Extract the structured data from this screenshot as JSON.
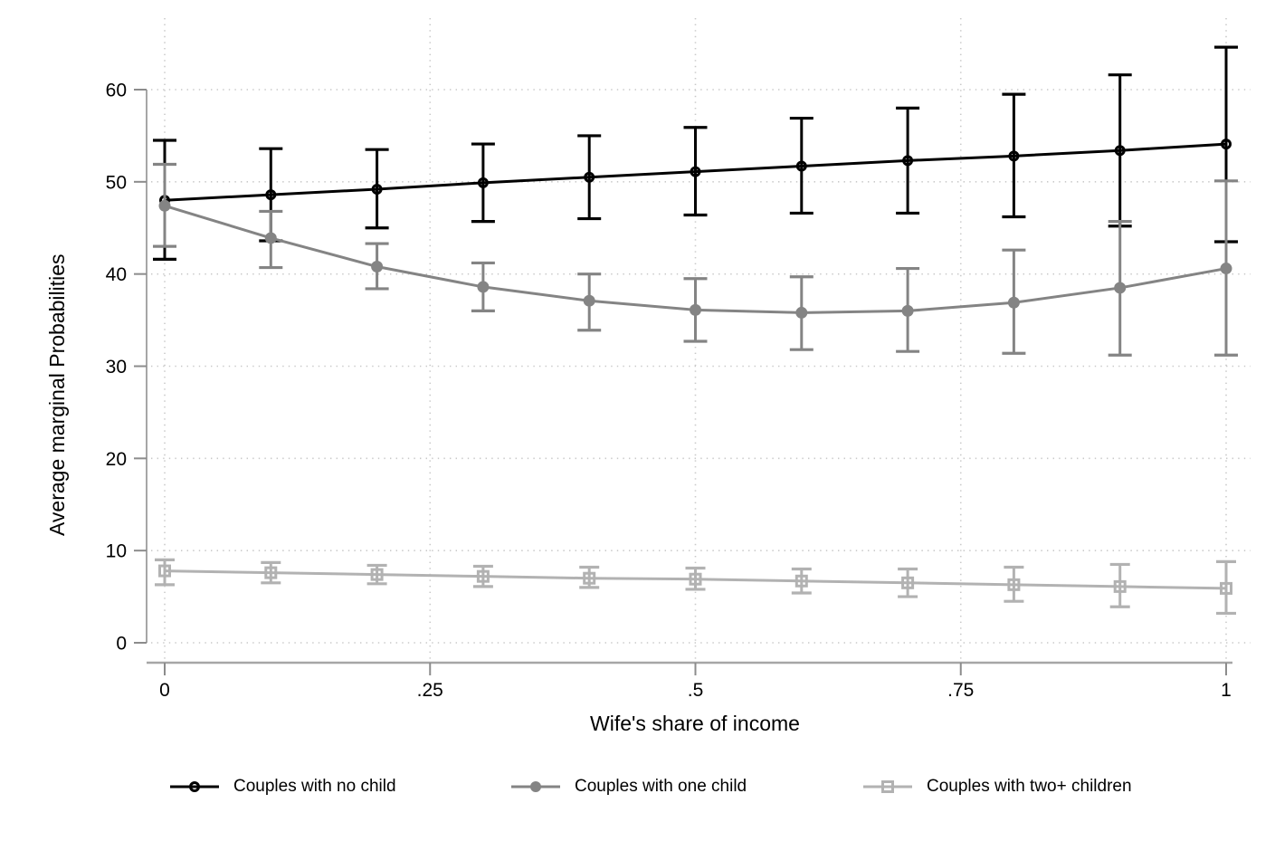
{
  "figure": {
    "background": "#ffffff"
  },
  "colors": {
    "axis_line": "#a6a6a6",
    "tick": "#8c8c8c",
    "gridline": "#c9c9c9",
    "text": "#000000"
  },
  "chart_data": {
    "type": "line",
    "title": "",
    "xlabel": "Wife's share of income",
    "ylabel": "Average marginal Probabilities",
    "x": [
      0,
      0.1,
      0.2,
      0.3,
      0.4,
      0.5,
      0.6,
      0.7,
      0.8,
      0.9,
      1
    ],
    "xtick_values": [
      0,
      0.25,
      0.5,
      0.75,
      1
    ],
    "xtick_labels": [
      "0",
      ".25",
      ".5",
      ".75",
      "1"
    ],
    "ytick_values": [
      0,
      10,
      20,
      30,
      40,
      50,
      60
    ],
    "ytick_labels": [
      "0",
      "10",
      "20",
      "30",
      "40",
      "50",
      "60"
    ],
    "xlim": [
      0,
      1
    ],
    "ylim": [
      0,
      66
    ],
    "grid": "dotted",
    "legend_position": "bottom",
    "error_bars": "confidence intervals",
    "series": [
      {
        "name": "Couples with no child",
        "color": "#000000",
        "marker": "circle-open",
        "values": [
          48.0,
          48.6,
          49.2,
          49.9,
          50.5,
          51.1,
          51.7,
          52.3,
          52.8,
          53.4,
          54.1
        ],
        "ci_low": [
          41.6,
          43.6,
          45.0,
          45.7,
          46.0,
          46.4,
          46.6,
          46.6,
          46.2,
          45.2,
          43.5
        ],
        "ci_high": [
          54.5,
          53.6,
          53.5,
          54.1,
          55.0,
          55.9,
          56.9,
          58.0,
          59.5,
          61.6,
          64.6
        ]
      },
      {
        "name": "Couples with one child",
        "color": "#848484",
        "marker": "circle-filled",
        "values": [
          47.4,
          43.9,
          40.8,
          38.6,
          37.1,
          36.1,
          35.8,
          36.0,
          36.9,
          38.5,
          40.6
        ],
        "ci_low": [
          43.0,
          40.7,
          38.4,
          36.0,
          33.9,
          32.7,
          31.8,
          31.6,
          31.4,
          31.2,
          31.2
        ],
        "ci_high": [
          51.9,
          46.8,
          43.3,
          41.2,
          40.0,
          39.5,
          39.7,
          40.6,
          42.6,
          45.7,
          50.1
        ]
      },
      {
        "name": "Couples with two+ children",
        "color": "#b2b2b2",
        "marker": "square-open",
        "values": [
          7.8,
          7.6,
          7.4,
          7.2,
          7.0,
          6.9,
          6.7,
          6.5,
          6.3,
          6.1,
          5.9
        ],
        "ci_low": [
          6.3,
          6.5,
          6.4,
          6.1,
          6.0,
          5.8,
          5.4,
          5.0,
          4.5,
          3.9,
          3.2
        ],
        "ci_high": [
          9.0,
          8.7,
          8.4,
          8.3,
          8.2,
          8.1,
          8.0,
          8.0,
          8.2,
          8.5,
          8.8
        ]
      }
    ]
  }
}
